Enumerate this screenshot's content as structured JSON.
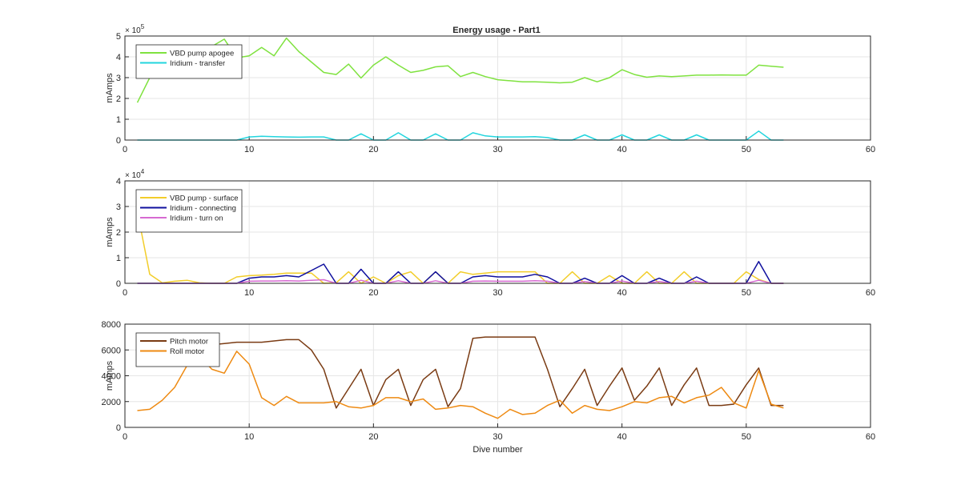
{
  "figure": {
    "title": "Energy usage - Part1"
  },
  "chart_data": [
    {
      "type": "line",
      "title": "Energy usage - Part1",
      "xlabel": "",
      "ylabel": "mAmps",
      "xlim": [
        0,
        60
      ],
      "ylim": [
        0,
        500000
      ],
      "y_exponent_label": "× 10^5",
      "y_exp_base": "× 10",
      "y_exp_power": "5",
      "grid": true,
      "legend_position": "top-left",
      "xticks": [
        "0",
        "10",
        "20",
        "30",
        "40",
        "50",
        "60"
      ],
      "yticks": [
        "0",
        "1",
        "2",
        "3",
        "4",
        "5"
      ],
      "series": [
        {
          "name": "VBD pump apogee",
          "color": "#7fe23f",
          "x": [
            1,
            2,
            3,
            4,
            5,
            6,
            7,
            8,
            9,
            10,
            11,
            12,
            13,
            14,
            15,
            16,
            17,
            18,
            19,
            20,
            21,
            22,
            23,
            24,
            25,
            26,
            27,
            28,
            29,
            30,
            31,
            32,
            33,
            34,
            35,
            36,
            37,
            38,
            39,
            40,
            41,
            42,
            43,
            44,
            45,
            46,
            47,
            48,
            49,
            50,
            51,
            52,
            53
          ],
          "values": [
            180000,
            300000,
            350000,
            420000,
            440000,
            455000,
            450000,
            485000,
            395000,
            405000,
            445000,
            405000,
            490000,
            425000,
            375000,
            325000,
            315000,
            365000,
            298000,
            360000,
            400000,
            360000,
            325000,
            335000,
            352000,
            357000,
            305000,
            325000,
            305000,
            290000,
            285000,
            280000,
            280000,
            278000,
            275000,
            278000,
            300000,
            280000,
            300000,
            338000,
            315000,
            302000,
            308000,
            305000,
            308000,
            312000,
            312000,
            313000,
            312000,
            312000,
            360000,
            355000,
            350000
          ]
        },
        {
          "name": "Iridium - transfer",
          "color": "#22d5de",
          "x": [
            1,
            2,
            3,
            4,
            5,
            6,
            7,
            8,
            9,
            10,
            11,
            12,
            13,
            14,
            15,
            16,
            17,
            18,
            19,
            20,
            21,
            22,
            23,
            24,
            25,
            26,
            27,
            28,
            29,
            30,
            31,
            32,
            33,
            34,
            35,
            36,
            37,
            38,
            39,
            40,
            41,
            42,
            43,
            44,
            45,
            46,
            47,
            48,
            49,
            50,
            51,
            52,
            53
          ],
          "values": [
            0,
            0,
            0,
            0,
            0,
            0,
            0,
            0,
            0,
            15000,
            18000,
            16000,
            15000,
            14000,
            15000,
            15000,
            0,
            0,
            30000,
            0,
            0,
            35000,
            0,
            0,
            30000,
            0,
            0,
            35000,
            20000,
            15000,
            15000,
            15000,
            16000,
            12000,
            0,
            0,
            25000,
            0,
            0,
            25000,
            0,
            0,
            25000,
            0,
            0,
            25000,
            0,
            0,
            0,
            0,
            43000,
            0,
            0
          ]
        }
      ]
    },
    {
      "type": "line",
      "title": "",
      "xlabel": "",
      "ylabel": "mAmps",
      "xlim": [
        0,
        60
      ],
      "ylim": [
        0,
        40000
      ],
      "y_exponent_label": "× 10^4",
      "y_exp_base": "× 10",
      "y_exp_power": "4",
      "grid": true,
      "legend_position": "top-left",
      "xticks": [
        "0",
        "10",
        "20",
        "30",
        "40",
        "50",
        "60"
      ],
      "yticks": [
        "0",
        "1",
        "2",
        "3",
        "4"
      ],
      "series": [
        {
          "name": "VBD pump - surface",
          "color": "#f2cd2a",
          "x": [
            1,
            2,
            3,
            4,
            5,
            6,
            7,
            8,
            9,
            10,
            11,
            12,
            13,
            14,
            15,
            16,
            17,
            18,
            19,
            20,
            21,
            22,
            23,
            24,
            25,
            26,
            27,
            28,
            29,
            30,
            31,
            32,
            33,
            34,
            35,
            36,
            37,
            38,
            39,
            40,
            41,
            42,
            43,
            44,
            45,
            46,
            47,
            48,
            49,
            50,
            51,
            52,
            53
          ],
          "values": [
            28000,
            3500,
            200,
            800,
            1200,
            200,
            0,
            0,
            2500,
            3000,
            3200,
            3500,
            4000,
            4000,
            4000,
            0,
            200,
            4500,
            0,
            2500,
            0,
            3000,
            4500,
            0,
            4500,
            0,
            4500,
            3500,
            4000,
            4500,
            4500,
            4500,
            4500,
            0,
            0,
            4500,
            0,
            0,
            3000,
            0,
            0,
            4500,
            0,
            0,
            4500,
            0,
            0,
            0,
            0,
            4500,
            1500,
            0,
            0
          ]
        },
        {
          "name": "Iridium - connecting",
          "color": "#0f0f9e",
          "x": [
            1,
            2,
            3,
            4,
            5,
            6,
            7,
            8,
            9,
            10,
            11,
            12,
            13,
            14,
            15,
            16,
            17,
            18,
            19,
            20,
            21,
            22,
            23,
            24,
            25,
            26,
            27,
            28,
            29,
            30,
            31,
            32,
            33,
            34,
            35,
            36,
            37,
            38,
            39,
            40,
            41,
            42,
            43,
            44,
            45,
            46,
            47,
            48,
            49,
            50,
            51,
            52,
            53
          ],
          "values": [
            0,
            0,
            0,
            0,
            0,
            0,
            0,
            0,
            0,
            2000,
            2500,
            2500,
            3000,
            2500,
            5000,
            7500,
            0,
            0,
            5500,
            0,
            0,
            4500,
            0,
            0,
            4500,
            0,
            0,
            2500,
            3000,
            2500,
            2500,
            2500,
            3500,
            2500,
            0,
            0,
            2000,
            0,
            0,
            3000,
            0,
            0,
            2000,
            0,
            0,
            2500,
            0,
            0,
            0,
            0,
            8500,
            0,
            0
          ]
        },
        {
          "name": "Iridium - turn on",
          "color": "#d66ad1",
          "x": [
            1,
            2,
            3,
            4,
            5,
            6,
            7,
            8,
            9,
            10,
            11,
            12,
            13,
            14,
            15,
            16,
            17,
            18,
            19,
            20,
            21,
            22,
            23,
            24,
            25,
            26,
            27,
            28,
            29,
            30,
            31,
            32,
            33,
            34,
            35,
            36,
            37,
            38,
            39,
            40,
            41,
            42,
            43,
            44,
            45,
            46,
            47,
            48,
            49,
            50,
            51,
            52,
            53
          ],
          "values": [
            0,
            0,
            0,
            0,
            0,
            0,
            0,
            0,
            0,
            800,
            900,
            900,
            1000,
            900,
            1200,
            1400,
            0,
            0,
            1200,
            0,
            0,
            1000,
            0,
            0,
            1000,
            0,
            0,
            800,
            900,
            800,
            800,
            800,
            1000,
            800,
            0,
            0,
            700,
            0,
            0,
            900,
            0,
            0,
            700,
            0,
            0,
            800,
            0,
            0,
            0,
            0,
            1200,
            0,
            0
          ]
        }
      ]
    },
    {
      "type": "line",
      "title": "",
      "xlabel": "Dive number",
      "ylabel": "mAmps",
      "xlim": [
        0,
        60
      ],
      "ylim": [
        0,
        8000
      ],
      "grid": true,
      "legend_position": "top-left",
      "xticks": [
        "0",
        "10",
        "20",
        "30",
        "40",
        "50",
        "60"
      ],
      "yticks": [
        "0",
        "2000",
        "4000",
        "6000",
        "8000"
      ],
      "series": [
        {
          "name": "Pitch motor",
          "color": "#7a3b13",
          "x": [
            1,
            2,
            3,
            4,
            5,
            6,
            7,
            8,
            9,
            10,
            11,
            12,
            13,
            14,
            15,
            16,
            17,
            18,
            19,
            20,
            21,
            22,
            23,
            24,
            25,
            26,
            27,
            28,
            29,
            30,
            31,
            32,
            33,
            34,
            35,
            36,
            37,
            38,
            39,
            40,
            41,
            42,
            43,
            44,
            45,
            46,
            47,
            48,
            49,
            50,
            51,
            52,
            53
          ],
          "values": [
            6200,
            6200,
            6200,
            6200,
            6300,
            6300,
            6400,
            6500,
            6600,
            6600,
            6600,
            6700,
            6800,
            6800,
            6000,
            4500,
            1500,
            3000,
            4500,
            1700,
            3700,
            4500,
            1700,
            3700,
            4500,
            1600,
            3000,
            6900,
            7000,
            7000,
            7000,
            7000,
            7000,
            4500,
            1600,
            3000,
            4500,
            1700,
            3200,
            4600,
            2100,
            3200,
            4600,
            1700,
            3300,
            4600,
            1700,
            1700,
            1800,
            3300,
            4600,
            1700,
            1700
          ]
        },
        {
          "name": "Roll motor",
          "color": "#ee8a12",
          "x": [
            1,
            2,
            3,
            4,
            5,
            6,
            7,
            8,
            9,
            10,
            11,
            12,
            13,
            14,
            15,
            16,
            17,
            18,
            19,
            20,
            21,
            22,
            23,
            24,
            25,
            26,
            27,
            28,
            29,
            30,
            31,
            32,
            33,
            34,
            35,
            36,
            37,
            38,
            39,
            40,
            41,
            42,
            43,
            44,
            45,
            46,
            47,
            48,
            49,
            50,
            51,
            52,
            53
          ],
          "values": [
            1300,
            1400,
            2100,
            3100,
            4800,
            5500,
            4500,
            4200,
            5900,
            4900,
            2300,
            1700,
            2400,
            1900,
            1900,
            1900,
            2000,
            1600,
            1500,
            1700,
            2300,
            2300,
            2000,
            2200,
            1400,
            1500,
            1700,
            1600,
            1100,
            700,
            1400,
            1000,
            1100,
            1700,
            2100,
            1100,
            1700,
            1400,
            1300,
            1600,
            2000,
            1900,
            2300,
            2400,
            1900,
            2300,
            2500,
            3100,
            1900,
            1500,
            4400,
            1800,
            1500
          ]
        }
      ]
    }
  ]
}
